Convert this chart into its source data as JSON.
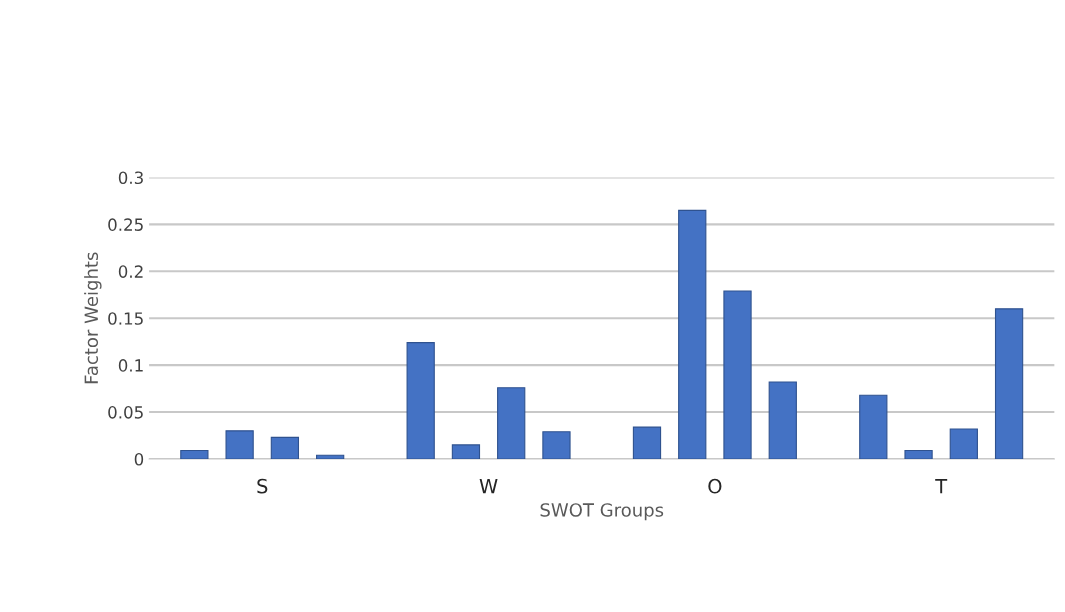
{
  "chart_data": {
    "type": "bar",
    "xlabel": "SWOT Groups",
    "ylabel": "Factor Weights",
    "categories": [
      "S",
      "W",
      "O",
      "T"
    ],
    "series": [
      {
        "color": "#4472c4",
        "values": [
          0.009,
          0.124,
          0.034,
          0.068
        ]
      },
      {
        "color": "#4472c4",
        "values": [
          0.03,
          0.015,
          0.265,
          0.009
        ]
      },
      {
        "color": "#4472c4",
        "values": [
          0.023,
          0.076,
          0.179,
          0.032
        ]
      },
      {
        "color": "#4472c4",
        "values": [
          0.004,
          0.029,
          0.082,
          0.16
        ]
      }
    ],
    "ylim": [
      0,
      0.3
    ],
    "yticks": [
      0,
      {
        "value": 0.05,
        "label": "0.05"
      },
      0.1,
      0.15,
      0.2,
      0.25,
      0.3
    ],
    "grid": "y",
    "legend": false
  }
}
